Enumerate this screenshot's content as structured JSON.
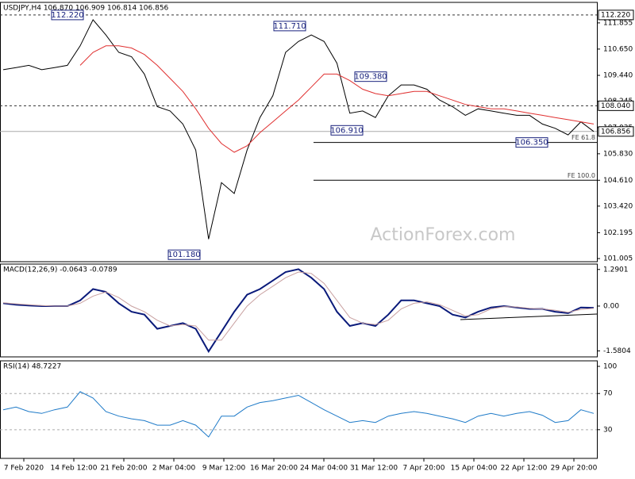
{
  "chart_data": [
    {
      "type": "line",
      "title": "USDJPY,H4  106.870 106.909 106.814 106.856",
      "ylim": [
        100.86,
        112.8
      ],
      "yticks": [
        111.855,
        {
          "value": 110.65,
          "label": "110.650"
        },
        {
          "value": 109.44,
          "label": "109.440"
        },
        108.245,
        107.035,
        {
          "value": 105.83,
          "label": "105.830"
        },
        {
          "value": 104.61,
          "label": "104.610"
        },
        {
          "value": 103.42,
          "label": "103.420"
        },
        102.195,
        101.005
      ],
      "series": [
        {
          "name": "Price",
          "color": "#000000",
          "values": [
            109.7,
            109.8,
            109.9,
            109.7,
            109.8,
            109.9,
            110.8,
            112.0,
            111.3,
            110.5,
            110.3,
            109.5,
            108.0,
            107.8,
            107.2,
            106.0,
            101.9,
            104.5,
            104.0,
            106.0,
            107.5,
            108.5,
            110.5,
            111.0,
            111.3,
            111.0,
            110.0,
            107.7,
            107.8,
            107.5,
            108.5,
            109.0,
            109.0,
            108.8,
            108.3,
            108.0,
            107.6,
            107.9,
            107.8,
            107.7,
            107.6,
            107.6,
            107.2,
            107.0,
            106.7,
            107.3,
            106.856
          ]
        },
        {
          "name": "MA",
          "color": "#e03030",
          "values": [
            null,
            null,
            null,
            null,
            null,
            null,
            109.9,
            110.5,
            110.8,
            110.8,
            110.7,
            110.4,
            109.9,
            109.3,
            108.7,
            107.9,
            107.0,
            106.3,
            105.9,
            106.2,
            106.8,
            107.3,
            107.8,
            108.3,
            108.9,
            109.5,
            109.5,
            109.2,
            108.8,
            108.6,
            108.5,
            108.6,
            108.7,
            108.7,
            108.5,
            108.3,
            108.1,
            108.0,
            107.9,
            107.9,
            107.8,
            107.7,
            107.6,
            107.5,
            107.4,
            107.3,
            107.2
          ]
        }
      ],
      "levels": [
        {
          "value": 112.22,
          "label": "112.220",
          "style": "dashed"
        },
        {
          "value": 108.04,
          "label": "108.040",
          "style": "dashed"
        },
        {
          "value": 106.856,
          "label": "106.856",
          "style": "current"
        }
      ],
      "projections": [
        {
          "name": "FE 61.8",
          "value": 106.35
        },
        {
          "name": "FE 100.0",
          "value": 104.61
        }
      ],
      "annotations": [
        {
          "value": 112.22,
          "label": "112.220"
        },
        {
          "value": 111.71,
          "label": "111.710"
        },
        {
          "value": 109.38,
          "label": "109.380"
        },
        {
          "value": 106.91,
          "label": "106.910"
        },
        {
          "value": 106.35,
          "label": "106.350"
        },
        {
          "value": 101.18,
          "label": "101.180"
        }
      ],
      "watermark": "ActionForex.com"
    },
    {
      "type": "line",
      "title": "MACD(12,26,9) -0.0643 -0.0789",
      "ylim": [
        -1.79,
        1.48
      ],
      "yticks": [
        1.2901,
        {
          "value": 0,
          "label": "0.00"
        },
        -1.5804
      ],
      "series": [
        {
          "name": "MACD",
          "color": "#0a1a7a",
          "values": [
            0.1,
            0.05,
            0.02,
            0.0,
            0.0,
            0.0,
            0.2,
            0.6,
            0.5,
            0.1,
            -0.2,
            -0.3,
            -0.8,
            -0.7,
            -0.6,
            -0.8,
            -1.6,
            -0.9,
            -0.2,
            0.4,
            0.6,
            0.9,
            1.2,
            1.3,
            1.0,
            0.6,
            -0.2,
            -0.7,
            -0.6,
            -0.7,
            -0.3,
            0.2,
            0.2,
            0.1,
            0.0,
            -0.3,
            -0.4,
            -0.2,
            -0.05,
            0.0,
            -0.05,
            -0.1,
            -0.1,
            -0.2,
            -0.25,
            -0.05,
            -0.06
          ]
        },
        {
          "name": "Signal",
          "color": "#c8a0a0",
          "values": [
            0.12,
            0.08,
            0.05,
            0.02,
            0.0,
            0.0,
            0.1,
            0.35,
            0.5,
            0.3,
            0.0,
            -0.2,
            -0.5,
            -0.7,
            -0.65,
            -0.7,
            -1.2,
            -1.2,
            -0.6,
            0.0,
            0.4,
            0.7,
            1.0,
            1.2,
            1.15,
            0.8,
            0.2,
            -0.4,
            -0.6,
            -0.65,
            -0.5,
            -0.1,
            0.1,
            0.15,
            0.05,
            -0.15,
            -0.35,
            -0.3,
            -0.1,
            -0.02,
            -0.03,
            -0.08,
            -0.1,
            -0.15,
            -0.22,
            -0.12,
            -0.08
          ]
        }
      ]
    },
    {
      "type": "line",
      "title": "RSI(14) 48.7227",
      "ylim": [
        -1.7,
        106.1
      ],
      "yticks": [
        100,
        70,
        30
      ],
      "gridlines": [
        70,
        30
      ],
      "series": [
        {
          "name": "RSI",
          "color": "#1e7ac8",
          "values": [
            52,
            55,
            50,
            48,
            52,
            55,
            72,
            65,
            50,
            45,
            42,
            40,
            35,
            35,
            40,
            35,
            22,
            45,
            45,
            55,
            60,
            62,
            65,
            68,
            60,
            52,
            45,
            38,
            40,
            38,
            45,
            48,
            50,
            48,
            45,
            42,
            38,
            45,
            48,
            45,
            48,
            50,
            46,
            38,
            40,
            52,
            48
          ]
        }
      ],
      "x_labels": [
        "7 Feb 2020",
        "14 Feb 12:00",
        "21 Feb 20:00",
        "2 Mar 04:00",
        "9 Mar 12:00",
        "16 Mar 20:00",
        "24 Mar 04:00",
        "31 Mar 12:00",
        "7 Apr 20:00",
        "15 Apr 04:00",
        "22 Apr 12:00",
        "29 Apr 20:00"
      ]
    }
  ]
}
